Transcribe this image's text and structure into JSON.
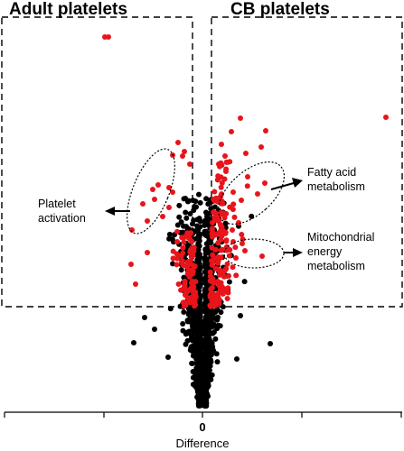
{
  "chart_data": {
    "type": "scatter",
    "title": "",
    "xlabel": "Difference",
    "ylabel": "",
    "x_ticks": [
      "0"
    ],
    "regions": [
      {
        "label": "Adult platelets",
        "side": "left"
      },
      {
        "label": "CB platelets",
        "side": "right"
      }
    ],
    "annotations": [
      {
        "lines": [
          "Platelet",
          "activation"
        ],
        "side": "left"
      },
      {
        "lines": [
          "Fatty acid",
          "metabolism"
        ],
        "side": "right"
      },
      {
        "lines": [
          "Mitochondrial",
          "energy",
          "metabolism"
        ],
        "side": "right"
      }
    ],
    "colors": {
      "significant": "#e8141b",
      "not_significant": "#000000",
      "box": "#000000"
    },
    "legend": "none",
    "grid": false
  }
}
